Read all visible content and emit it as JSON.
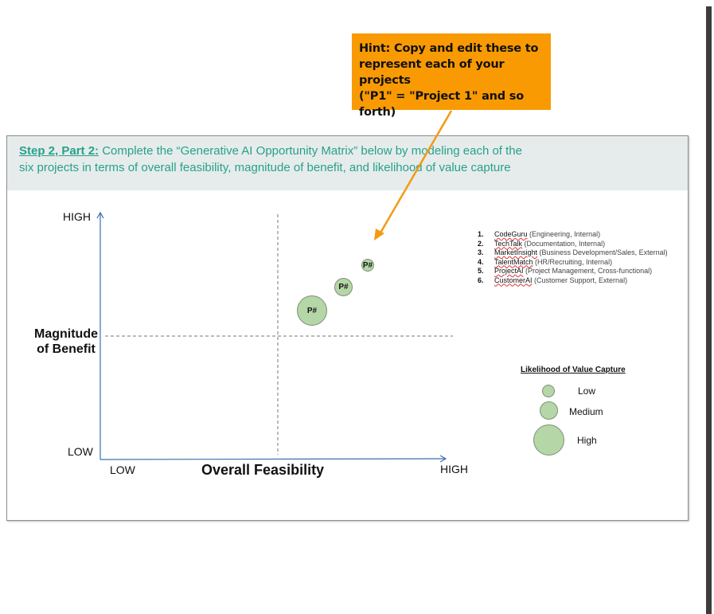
{
  "hint": {
    "lines": [
      "Hint: Copy and edit these to",
      "represent each of your projects",
      "(\"P1\" = \"Project 1\" and so forth)"
    ]
  },
  "banner": {
    "step": "Step 2, Part 2:",
    "line1": " Complete the “Generative AI Opportunity Matrix” below by modeling each of the",
    "line2": "six projects in terms of overall feasibility, magnitude of benefit, and likelihood of value capture"
  },
  "axes": {
    "y_high": "HIGH",
    "y_low": "LOW",
    "x_low": "LOW",
    "x_high": "HIGH",
    "y_title": "Magnitude of Benefit",
    "x_title": "Overall Feasibility"
  },
  "bubbles": [
    {
      "label": "P#",
      "size": "Small"
    },
    {
      "label": "P#",
      "size": "Medium"
    },
    {
      "label": "P#",
      "size": "High"
    }
  ],
  "projects": [
    {
      "num": "1.",
      "name": "CodeGuru",
      "detail": " (Engineering, Internal)"
    },
    {
      "num": "2.",
      "name": "TechTalk",
      "detail": " (Documentation, Internal)"
    },
    {
      "num": "3.",
      "name": "MarketInsight",
      "detail": " (Business Development/Sales, External)"
    },
    {
      "num": "4.",
      "name": "TalentMatch",
      "detail": " (HR/Recruiting, Internal)"
    },
    {
      "num": "5.",
      "name": "ProjectAI",
      "detail": " (Project Management, Cross-functional)"
    },
    {
      "num": "6.",
      "name": "CustomerAI",
      "detail": " (Customer Support, External)"
    }
  ],
  "legend": {
    "title": "Likelihood of Value Capture",
    "items": [
      "Low",
      "Medium",
      "High"
    ]
  },
  "colors": {
    "hint_bg": "#f99a03",
    "banner_text": "#27a18a",
    "bubble_fill": "#b5d6a7",
    "arrow": "#f39a12",
    "axis": "#3a6fb0"
  }
}
